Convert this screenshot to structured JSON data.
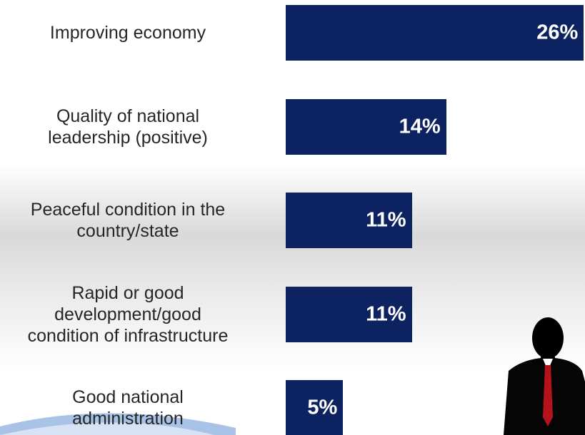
{
  "chart_data": {
    "type": "bar",
    "orientation": "horizontal",
    "color": "#0d2260",
    "categories": [
      "Improving economy",
      "Quality of national\nleadership (positive)",
      "Peaceful condition in the\ncountry/state",
      "Rapid or good\ndevelopment/good\ncondition of infrastructure",
      "Good national\nadministration"
    ],
    "values": [
      26,
      14,
      11,
      11,
      5
    ],
    "value_labels": [
      "26%",
      "14%",
      "11%",
      "11%",
      "5%"
    ]
  }
}
